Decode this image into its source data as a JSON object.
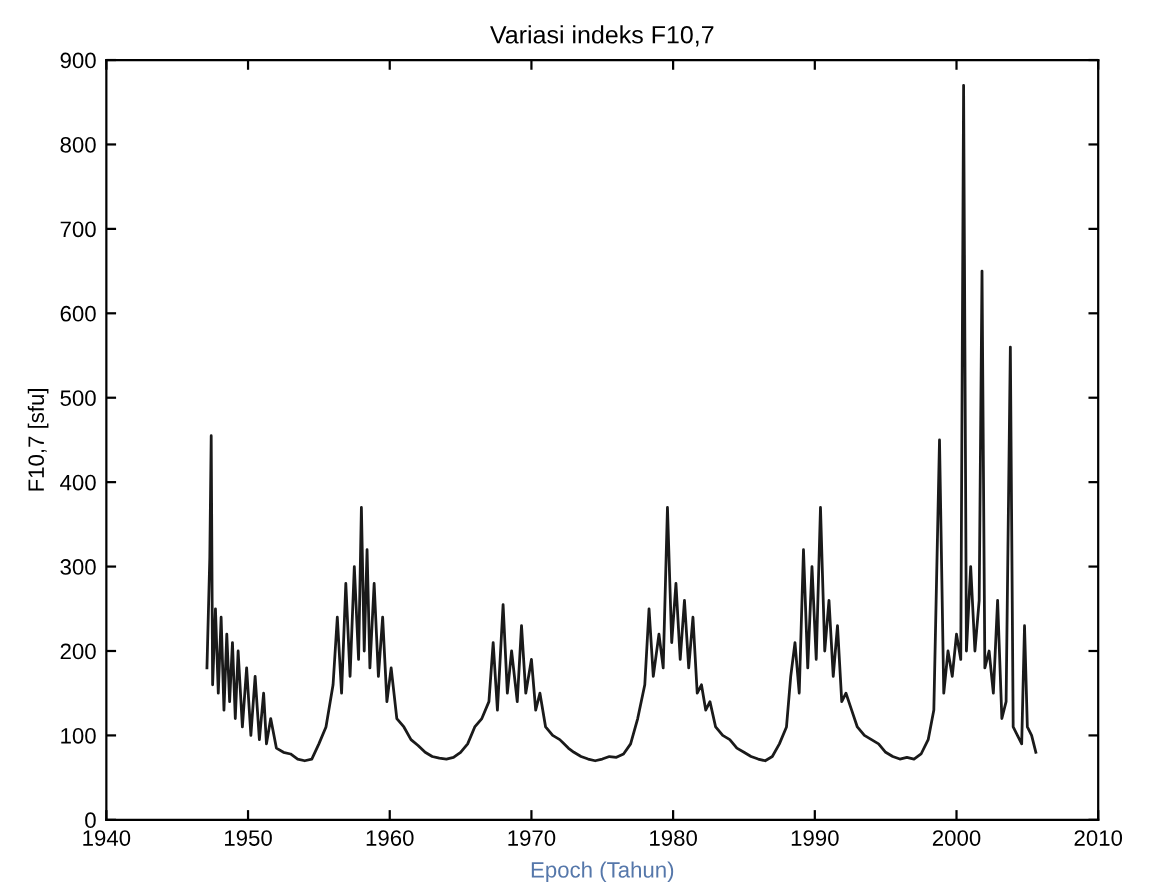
{
  "chart_data": {
    "type": "line",
    "title": "Variasi indeks F10,7",
    "xlabel": "Epoch (Tahun)",
    "ylabel": "F10,7 [sfu]",
    "xlim": [
      1940,
      2010
    ],
    "xticks": [
      1940,
      1950,
      1960,
      1970,
      1980,
      1990,
      2000,
      2010
    ],
    "ylim": [
      0,
      900
    ],
    "yticks": [
      0,
      100,
      200,
      300,
      400,
      500,
      600,
      700,
      800,
      900
    ],
    "grid": false,
    "legend": false,
    "marker": "none",
    "line_style": "solid",
    "series": [
      {
        "color": "#1a1a1a",
        "x": [
          1947.1,
          1947.3,
          1947.4,
          1947.5,
          1947.7,
          1947.9,
          1948.1,
          1948.3,
          1948.5,
          1948.7,
          1948.9,
          1949.1,
          1949.3,
          1949.6,
          1949.9,
          1950.2,
          1950.5,
          1950.8,
          1951.1,
          1951.3,
          1951.6,
          1952.0,
          1952.5,
          1953.0,
          1953.5,
          1954.0,
          1954.5,
          1955.0,
          1955.5,
          1956.0,
          1956.3,
          1956.6,
          1956.9,
          1957.2,
          1957.5,
          1957.8,
          1958.0,
          1958.2,
          1958.4,
          1958.6,
          1958.9,
          1959.2,
          1959.5,
          1959.8,
          1960.1,
          1960.5,
          1961.0,
          1961.5,
          1962.0,
          1962.5,
          1963.0,
          1963.5,
          1964.0,
          1964.5,
          1965.0,
          1965.5,
          1966.0,
          1966.5,
          1967.0,
          1967.3,
          1967.6,
          1968.0,
          1968.3,
          1968.6,
          1969.0,
          1969.3,
          1969.6,
          1970.0,
          1970.3,
          1970.6,
          1971.0,
          1971.5,
          1972.0,
          1972.3,
          1972.6,
          1973.0,
          1973.5,
          1974.0,
          1974.5,
          1975.0,
          1975.5,
          1976.0,
          1976.5,
          1977.0,
          1977.5,
          1978.0,
          1978.3,
          1978.6,
          1979.0,
          1979.3,
          1979.6,
          1979.9,
          1980.2,
          1980.5,
          1980.8,
          1981.1,
          1981.4,
          1981.7,
          1982.0,
          1982.3,
          1982.6,
          1983.0,
          1983.5,
          1984.0,
          1984.5,
          1985.0,
          1985.5,
          1986.0,
          1986.5,
          1987.0,
          1987.5,
          1988.0,
          1988.3,
          1988.6,
          1988.9,
          1989.2,
          1989.5,
          1989.8,
          1990.1,
          1990.4,
          1990.7,
          1991.0,
          1991.3,
          1991.6,
          1991.9,
          1992.2,
          1992.6,
          1993.0,
          1993.5,
          1994.0,
          1994.5,
          1995.0,
          1995.5,
          1996.0,
          1996.5,
          1997.0,
          1997.5,
          1998.0,
          1998.4,
          1998.8,
          1999.1,
          1999.4,
          1999.7,
          2000.0,
          2000.3,
          2000.5,
          2000.7,
          2001.0,
          2001.3,
          2001.6,
          2001.8,
          2002.0,
          2002.3,
          2002.6,
          2002.9,
          2003.2,
          2003.5,
          2003.8,
          2004.0,
          2004.3,
          2004.6,
          2004.8,
          2005.0,
          2005.3,
          2005.6
        ],
        "values": [
          180,
          310,
          455,
          160,
          250,
          150,
          240,
          130,
          220,
          140,
          210,
          120,
          200,
          110,
          180,
          100,
          170,
          95,
          150,
          90,
          120,
          85,
          80,
          78,
          72,
          70,
          72,
          90,
          110,
          160,
          240,
          150,
          280,
          170,
          300,
          190,
          370,
          200,
          320,
          180,
          280,
          170,
          240,
          140,
          180,
          120,
          110,
          95,
          88,
          80,
          75,
          73,
          72,
          74,
          80,
          90,
          110,
          120,
          140,
          210,
          130,
          255,
          150,
          200,
          140,
          230,
          150,
          190,
          130,
          150,
          110,
          100,
          95,
          90,
          85,
          80,
          75,
          72,
          70,
          72,
          75,
          74,
          78,
          90,
          120,
          160,
          250,
          170,
          220,
          180,
          370,
          210,
          280,
          190,
          260,
          180,
          240,
          150,
          160,
          130,
          140,
          110,
          100,
          95,
          85,
          80,
          75,
          72,
          70,
          75,
          90,
          110,
          170,
          210,
          150,
          320,
          180,
          300,
          190,
          370,
          200,
          260,
          170,
          230,
          140,
          150,
          130,
          110,
          100,
          95,
          90,
          80,
          75,
          72,
          74,
          72,
          78,
          95,
          130,
          450,
          150,
          200,
          170,
          220,
          190,
          870,
          200,
          300,
          200,
          260,
          650,
          180,
          200,
          150,
          260,
          120,
          140,
          560,
          110,
          100,
          90,
          230,
          110,
          100,
          80
        ]
      }
    ]
  }
}
